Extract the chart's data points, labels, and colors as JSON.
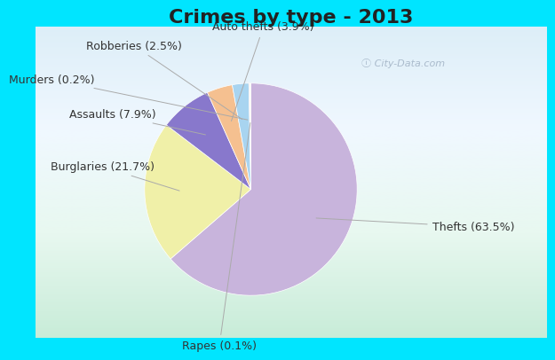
{
  "title": "Crimes by type - 2013",
  "labels": [
    "Thefts",
    "Burglaries",
    "Assaults",
    "Auto thefts",
    "Robberies",
    "Murders",
    "Rapes"
  ],
  "percentages": [
    63.5,
    21.7,
    7.9,
    3.9,
    2.5,
    0.2,
    0.1
  ],
  "colors": [
    "#c8b4dc",
    "#f0f0a8",
    "#8878cc",
    "#f5c090",
    "#a8d4f0",
    "#f0d8d8",
    "#e0f5e0"
  ],
  "label_display": [
    "Thefts (63.5%)",
    "Burglaries (21.7%)",
    "Assaults (7.9%)",
    "Auto thefts (3.9%)",
    "Robberies (2.5%)",
    "Murders (0.2%)",
    "Rapes (0.1%)"
  ],
  "background_color_outer": "#00e5ff",
  "background_color_inner_top": "#d0ece8",
  "background_color_inner_bottom": "#e8f5e0",
  "title_fontsize": 16,
  "label_fontsize": 9,
  "startangle": 90,
  "label_color": "#333333",
  "watermark_color": "#aabbcc"
}
